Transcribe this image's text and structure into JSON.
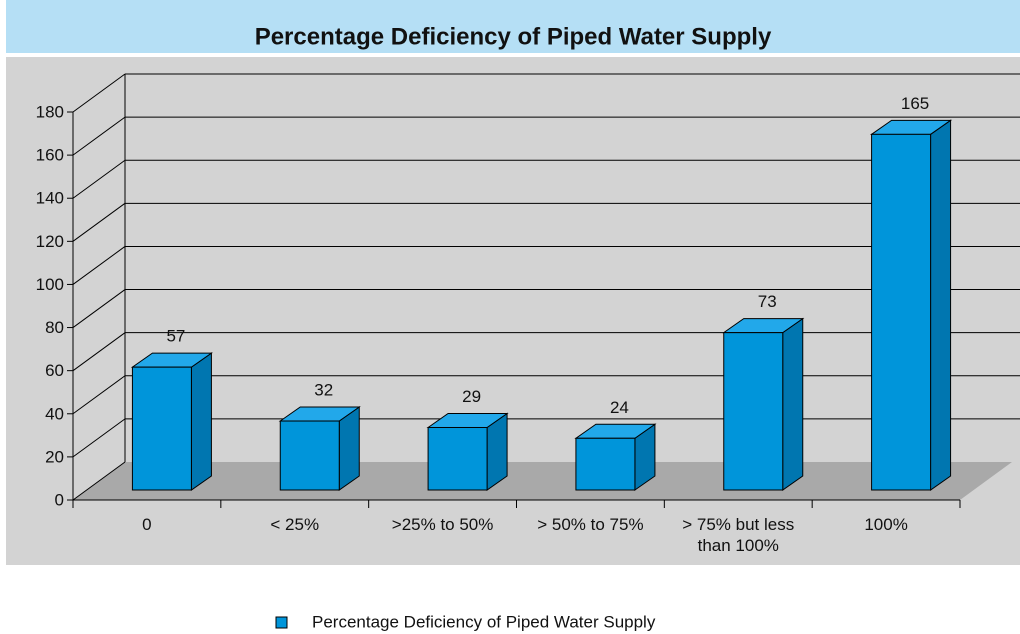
{
  "chart_data": {
    "type": "bar",
    "title": "Percentage Deficiency of Piped Water Supply",
    "categories": [
      "0",
      "< 25%",
      ">25% to 50%",
      "> 50% to 75%",
      "> 75% but less than 100%",
      "100%"
    ],
    "series": [
      {
        "name": "Percentage Deficiency of Piped Water Supply",
        "color": "#0095da",
        "values": [
          57,
          32,
          29,
          24,
          73,
          165
        ]
      }
    ],
    "ylim": [
      0,
      180
    ],
    "yticks": [
      0,
      20,
      40,
      60,
      80,
      100,
      120,
      140,
      160,
      180
    ],
    "grid": true,
    "legend": "bottom"
  }
}
